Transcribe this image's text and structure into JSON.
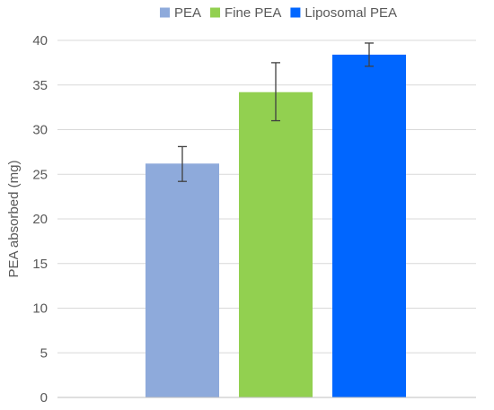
{
  "chart_data": {
    "type": "bar",
    "title": "",
    "xlabel": "",
    "ylabel": "PEA absorbed (mg)",
    "ylim": [
      0,
      40
    ],
    "yticks": [
      0,
      5,
      10,
      15,
      20,
      25,
      30,
      35,
      40
    ],
    "grid": true,
    "legend_position": "top",
    "series": [
      {
        "name": "PEA",
        "value": 26.2,
        "error_low": 24.2,
        "error_high": 28.1,
        "color": "#8eaadb"
      },
      {
        "name": "Fine PEA",
        "value": 34.2,
        "error_low": 31.0,
        "error_high": 37.5,
        "color": "#92d050"
      },
      {
        "name": "Liposomal PEA",
        "value": 38.4,
        "error_low": 37.1,
        "error_high": 39.7,
        "color": "#0066ff"
      }
    ]
  }
}
